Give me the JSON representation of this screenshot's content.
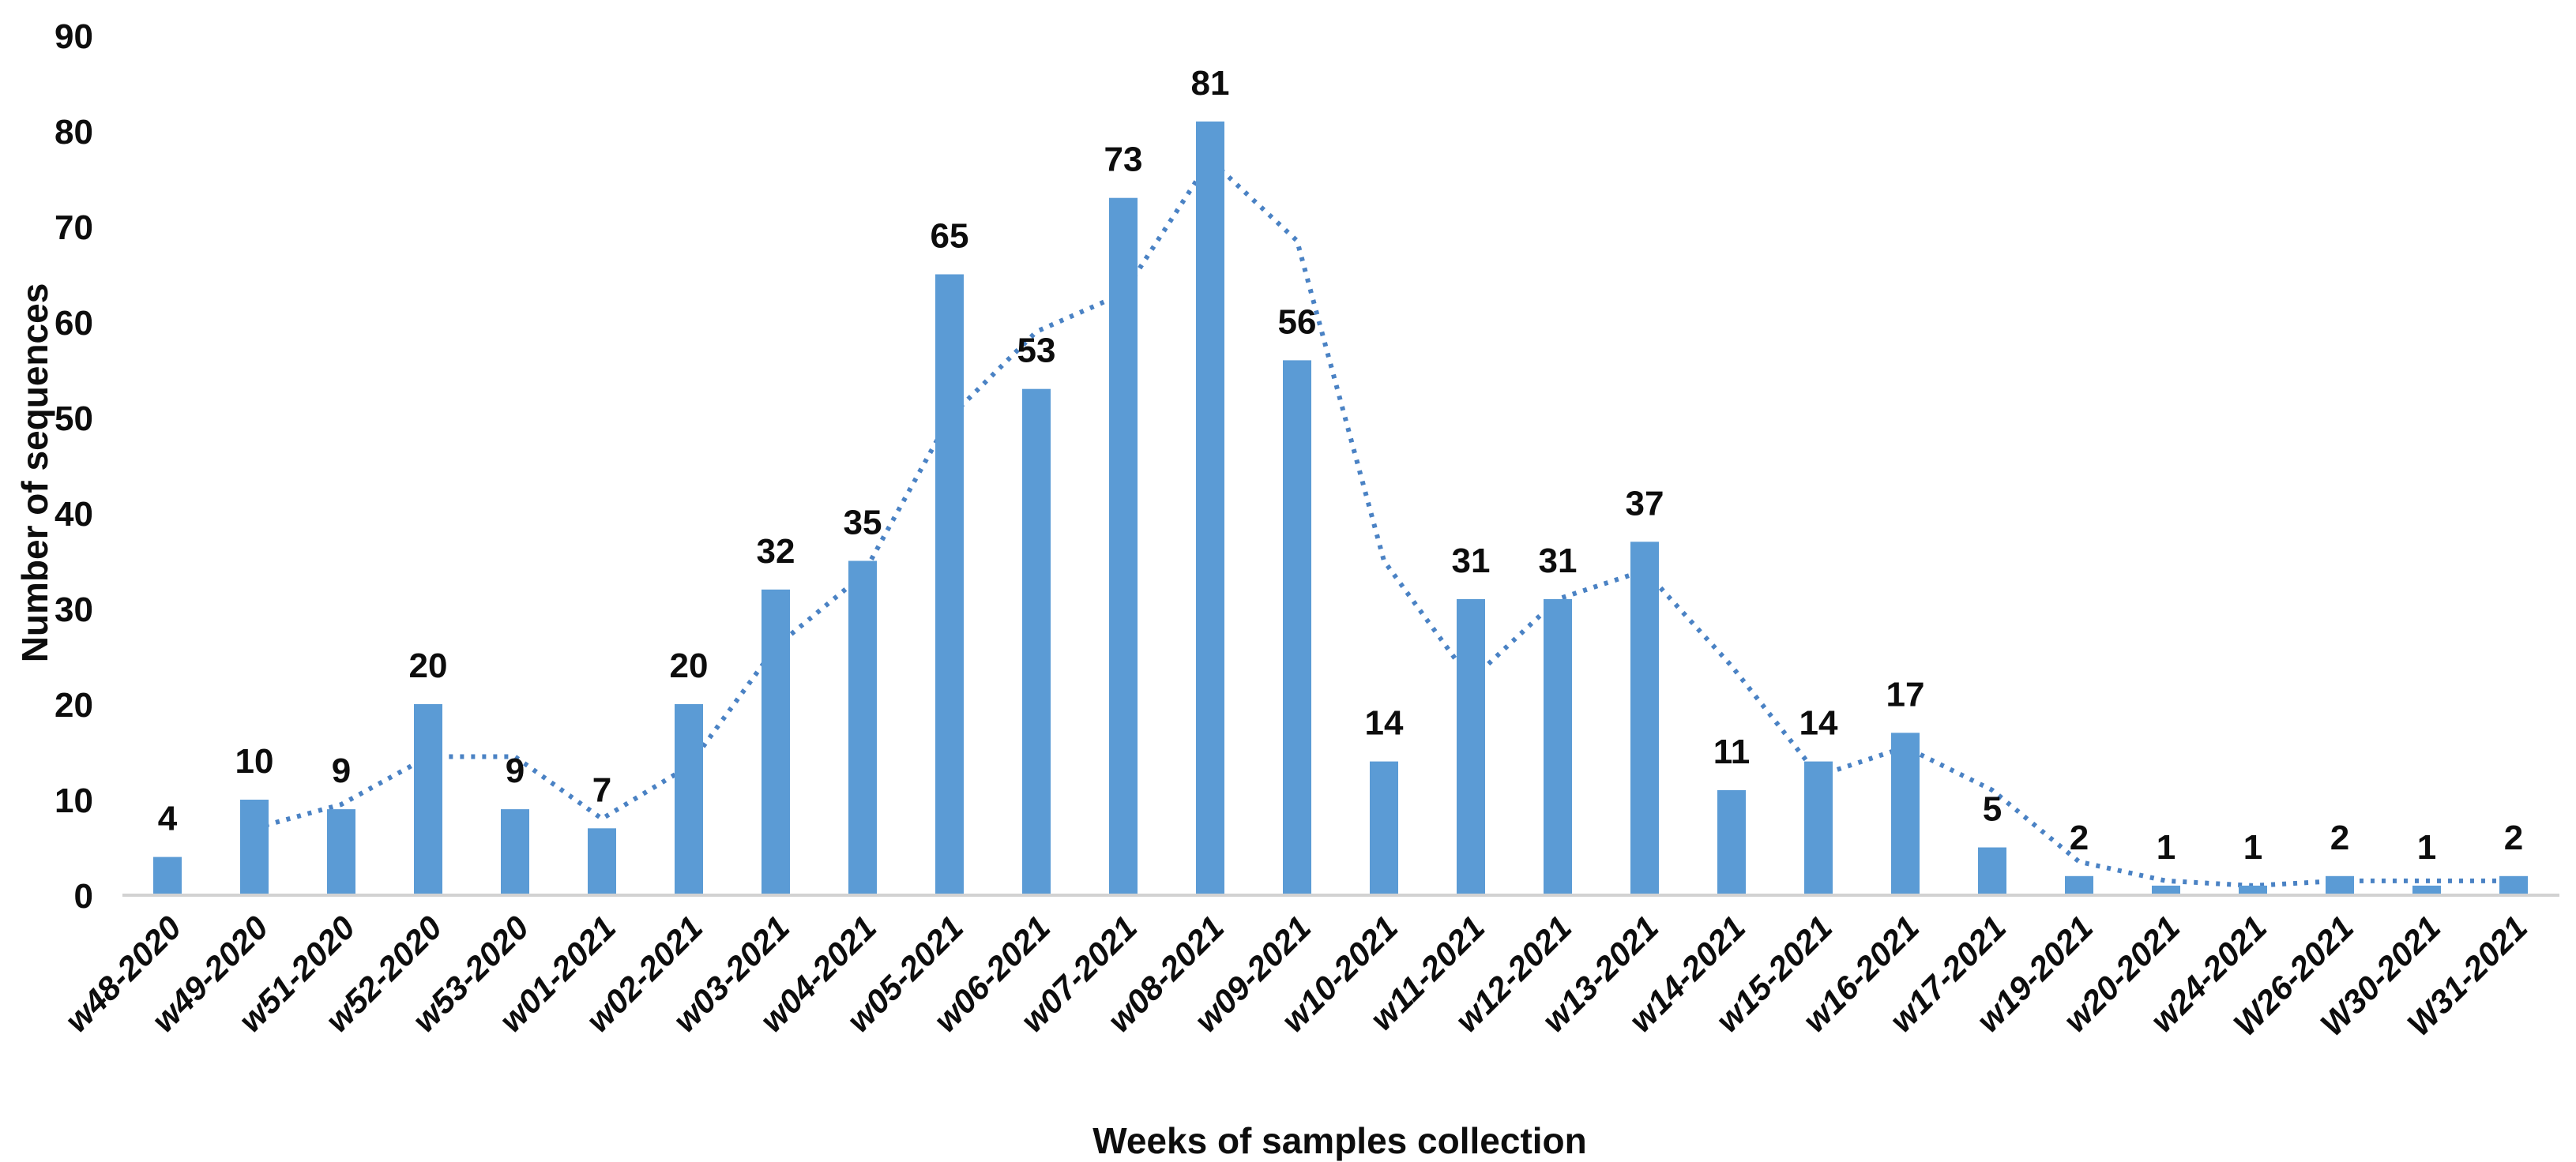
{
  "chart_data": {
    "type": "bar",
    "title": "",
    "xlabel": "Weeks of samples collection",
    "ylabel": "Number of sequences",
    "categories": [
      "w48-2020",
      "w49-2020",
      "w51-2020",
      "w52-2020",
      "w53-2020",
      "w01-2021",
      "w02-2021",
      "w03-2021",
      "w04-2021",
      "w05-2021",
      "w06-2021",
      "w07-2021",
      "w08-2021",
      "w09-2021",
      "w10-2021",
      "w11-2021",
      "w12-2021",
      "w13-2021",
      "w14-2021",
      "w15-2021",
      "w16-2021",
      "w17-2021",
      "w19-2021",
      "w20-2021",
      "w24-2021",
      "W26-2021",
      "W30-2021",
      "W31-2021"
    ],
    "values": [
      4,
      10,
      9,
      20,
      9,
      7,
      20,
      32,
      35,
      65,
      53,
      73,
      81,
      56,
      14,
      31,
      31,
      37,
      11,
      14,
      17,
      5,
      2,
      1,
      1,
      2,
      1,
      2
    ],
    "data_labels": true,
    "ylim": [
      0,
      90
    ],
    "yticks": [
      0,
      10,
      20,
      30,
      40,
      50,
      60,
      70,
      80,
      90
    ],
    "gridlines": false,
    "legend": "none",
    "bar_color": "#5B9BD5",
    "axis_line_color": "#D2D2D2",
    "text_color": "#0d0d0d",
    "trendline": {
      "type": "moving_average",
      "period": 2,
      "style": "dotted",
      "color": "#4A82C4",
      "start_index": 1,
      "values": [
        7,
        9.5,
        14.5,
        14.5,
        8,
        13.5,
        26,
        33.5,
        50,
        59,
        63,
        77,
        68.5,
        35,
        22.5,
        31,
        34,
        24,
        12.5,
        15.5,
        11,
        3.5,
        1.5,
        1,
        1.5,
        1.5,
        1.5
      ]
    }
  }
}
